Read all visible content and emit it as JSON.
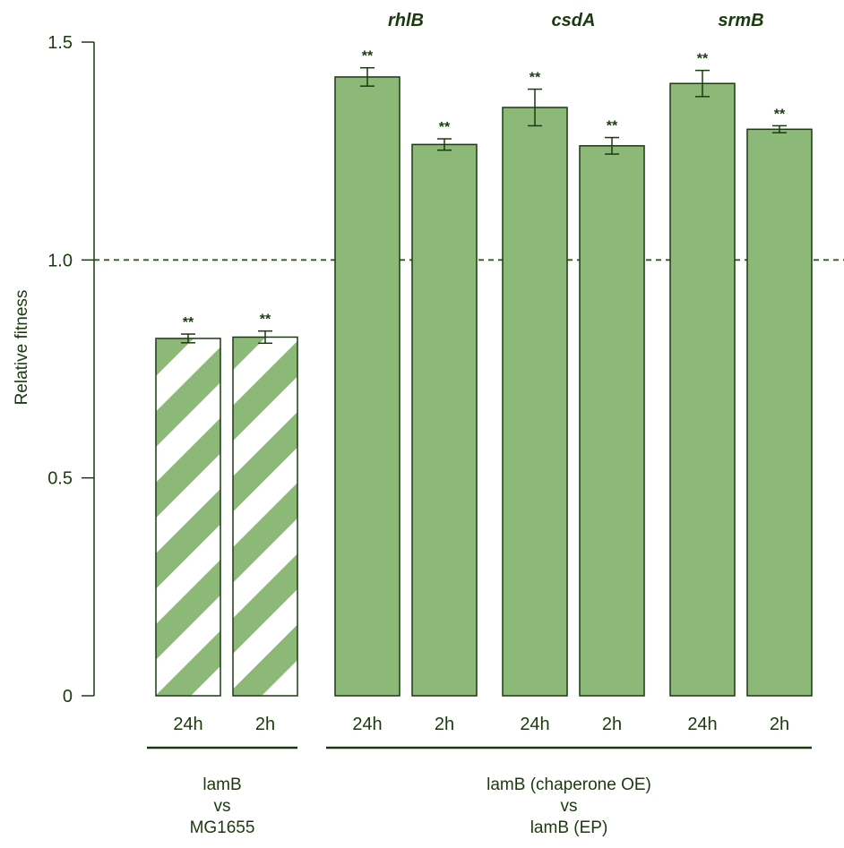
{
  "chart_data": {
    "type": "bar",
    "ylabel": "Relative fitness",
    "ylim": [
      0,
      1.5
    ],
    "yticks": [
      {
        "value": 0,
        "label": "0"
      },
      {
        "value": 0.5,
        "label": "0.5"
      },
      {
        "value": 1.0,
        "label": "1.0"
      },
      {
        "value": 1.5,
        "label": "1.5"
      }
    ],
    "reference_line": 1.0,
    "colors": {
      "bar_fill": "#8cb878",
      "bar_stroke": "#1a3a10",
      "hatch_light": "#ffffff",
      "text": "#1a3a10",
      "reference": "#2e5a20"
    },
    "bars": [
      {
        "category": "24h",
        "value": 0.82,
        "error": 0.01,
        "significance": "**",
        "hatched": true,
        "group": 0
      },
      {
        "category": "2h",
        "value": 0.823,
        "error": 0.014,
        "significance": "**",
        "hatched": true,
        "group": 0
      },
      {
        "category": "24h",
        "value": 1.42,
        "error": 0.021,
        "significance": "**",
        "hatched": false,
        "group": 1
      },
      {
        "category": "2h",
        "value": 1.265,
        "error": 0.013,
        "significance": "**",
        "hatched": false,
        "group": 1
      },
      {
        "category": "24h",
        "value": 1.35,
        "error": 0.042,
        "significance": "**",
        "hatched": false,
        "group": 2
      },
      {
        "category": "2h",
        "value": 1.262,
        "error": 0.019,
        "significance": "**",
        "hatched": false,
        "group": 2
      },
      {
        "category": "24h",
        "value": 1.405,
        "error": 0.03,
        "significance": "**",
        "hatched": false,
        "group": 3
      },
      {
        "category": "2h",
        "value": 1.3,
        "error": 0.008,
        "significance": "**",
        "hatched": false,
        "group": 3
      }
    ],
    "gene_labels": [
      {
        "group": 1,
        "text": "rhlB"
      },
      {
        "group": 2,
        "text": "csdA"
      },
      {
        "group": 3,
        "text": "srmB"
      }
    ],
    "comparison_groups": [
      {
        "groups": [
          0
        ],
        "lines": [
          "lamB",
          "vs",
          "MG1655"
        ]
      },
      {
        "groups": [
          1,
          2,
          3
        ],
        "lines": [
          "lamB (chaperone OE)",
          "vs",
          "lamB (EP)"
        ]
      }
    ]
  }
}
